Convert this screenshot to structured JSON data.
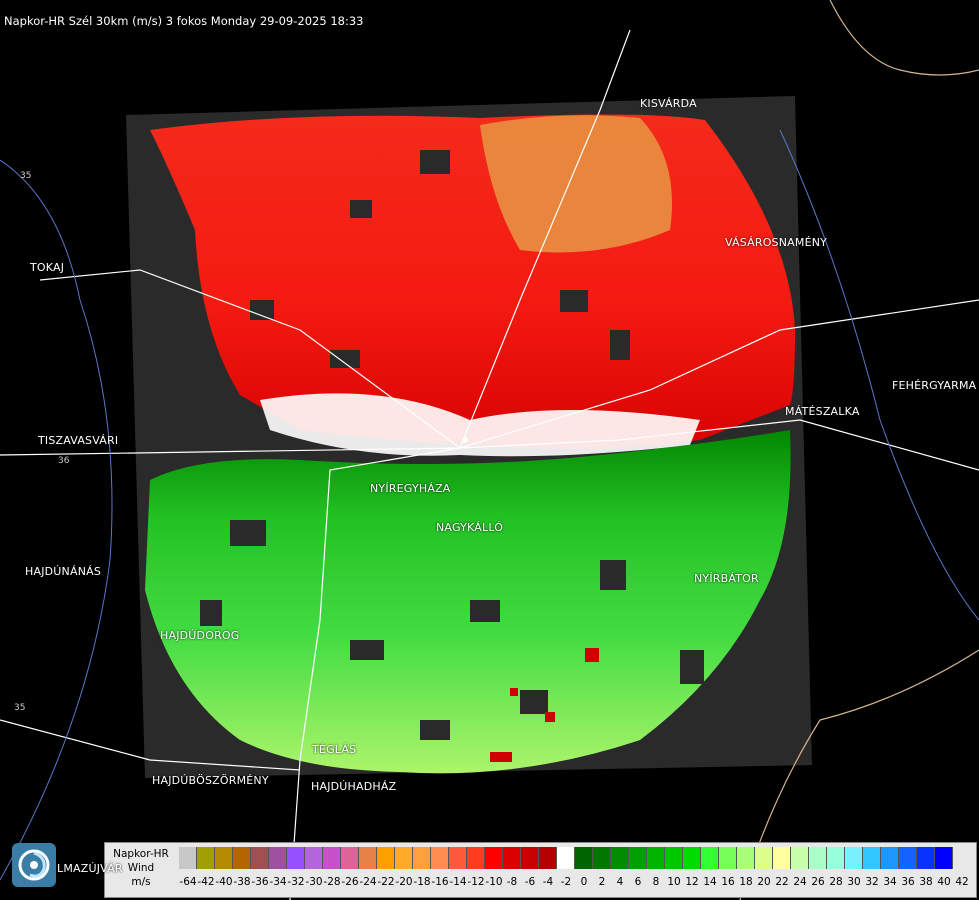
{
  "title": "Napkor-HR Szél 30km (m/s) 3 fokos Monday 29-09-2025 18:33",
  "cities": [
    {
      "id": "kisvarda",
      "label": "KISVÁRDA"
    },
    {
      "id": "tokaj",
      "label": "TOKAJ"
    },
    {
      "id": "vasarosnameny",
      "label": "VÁSÁROSNAMÉNY"
    },
    {
      "id": "fehergyarmat",
      "label": "FEHÉRGYARMA"
    },
    {
      "id": "mateszalka",
      "label": "MÁTÉSZALKA"
    },
    {
      "id": "tiszavasvari",
      "label": "TISZAVASVÁRI"
    },
    {
      "id": "nyiregyhaza",
      "label": "NYÍREGYHÁZA"
    },
    {
      "id": "nagykallo",
      "label": "NAGYKÁLLÓ"
    },
    {
      "id": "hajdunanas",
      "label": "HAJDÚNÁNÁS"
    },
    {
      "id": "nyirbator",
      "label": "NYÍRBÁTOR"
    },
    {
      "id": "hajdudorog",
      "label": "HAJDÚDOROG"
    },
    {
      "id": "teglas",
      "label": "TÉGLÁS"
    },
    {
      "id": "hajduboszormeny",
      "label": "HAJDÚBÖSZÖRMÉNY"
    },
    {
      "id": "hajduhadhaz",
      "label": "HAJDÚHADHÁZ"
    },
    {
      "id": "balmazujvaros",
      "label": "LMAZÚJVÁR"
    }
  ],
  "road_numbers": [
    "35",
    "36",
    "35"
  ],
  "legend": {
    "title_line1": "Napkor-HR",
    "title_line2": "Wind",
    "title_line3": "m/s",
    "colors": [
      "#c8c8c8",
      "#a0a000",
      "#b48c00",
      "#b46400",
      "#a05050",
      "#a050a0",
      "#9650ff",
      "#b464dc",
      "#c850c8",
      "#dc6496",
      "#e68246",
      "#ffa000",
      "#ffaa28",
      "#ffa03c",
      "#ff8c50",
      "#ff5a3c",
      "#ff3c1e",
      "#ff0000",
      "#dc0000",
      "#c80000",
      "#b40000",
      "#ffffff",
      "#006400",
      "#007800",
      "#008c00",
      "#00a000",
      "#00b400",
      "#00c800",
      "#00dc00",
      "#32ff32",
      "#78ff5a",
      "#aaff78",
      "#dcff8c",
      "#ffffa0",
      "#c8ffaa",
      "#aaffc8",
      "#96ffdc",
      "#78f0ff",
      "#32c8ff",
      "#1e96ff",
      "#1464ff",
      "#0a32ff",
      "#0000ff"
    ],
    "ticks": [
      "-64",
      "-42",
      "-40",
      "-38",
      "-36",
      "-34",
      "-32",
      "-30",
      "-28",
      "-26",
      "-24",
      "-22",
      "-20",
      "-18",
      "-16",
      "-14",
      "-12",
      "-10",
      "-8",
      "-6",
      "-4",
      "-2",
      "0",
      "2",
      "4",
      "6",
      "8",
      "10",
      "12",
      "14",
      "16",
      "18",
      "20",
      "22",
      "24",
      "26",
      "28",
      "30",
      "32",
      "34",
      "36",
      "38",
      "40",
      "42"
    ]
  }
}
